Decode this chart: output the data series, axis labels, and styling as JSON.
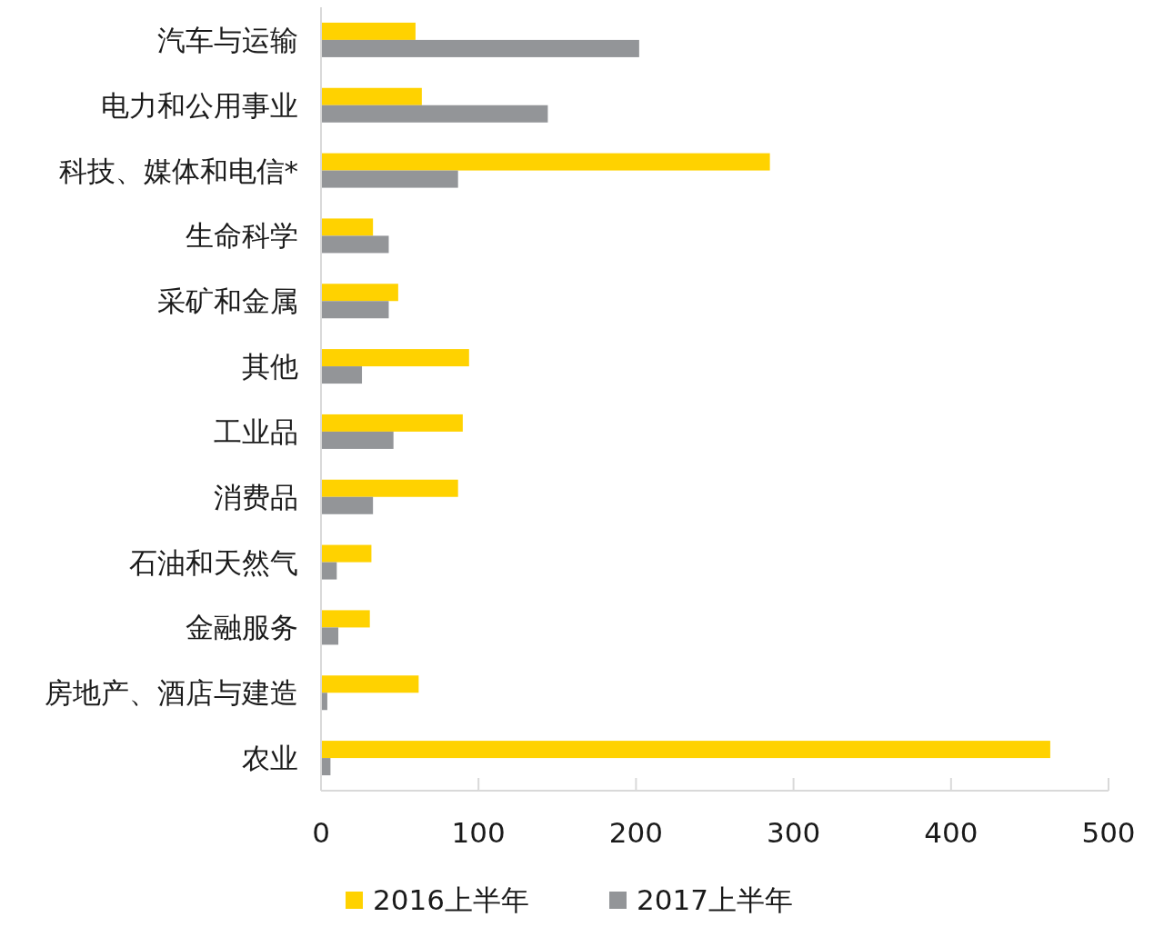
{
  "chart_data": {
    "type": "bar",
    "orientation": "horizontal",
    "categories": [
      "汽车与运输",
      "电力和公用事业",
      "科技、媒体和电信*",
      "生命科学",
      "采矿和金属",
      "其他",
      "工业品",
      "消费品",
      "石油和天然气",
      "金融服务",
      "房地产、酒店与建造",
      "农业"
    ],
    "series": [
      {
        "name": "2016上半年",
        "color": "#ffd200",
        "values": [
          60,
          64,
          285,
          33,
          49,
          94,
          90,
          87,
          32,
          31,
          62,
          463
        ]
      },
      {
        "name": "2017上半年",
        "color": "#939598",
        "values": [
          202,
          144,
          87,
          43,
          43,
          26,
          46,
          33,
          10,
          11,
          4,
          6
        ]
      }
    ],
    "xlim": [
      0,
      500
    ],
    "xticks": [
      0,
      100,
      200,
      300,
      400,
      500
    ],
    "legend": "bottom"
  }
}
